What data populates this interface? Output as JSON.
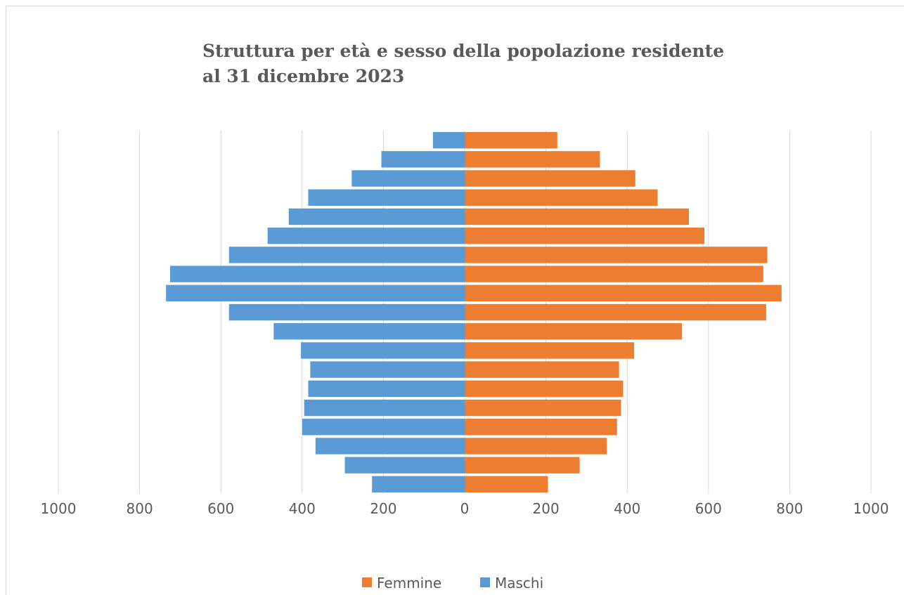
{
  "chart_data": {
    "type": "bar",
    "orientation": "horizontal",
    "title_lines": [
      "Struttura per età e sesso della popolazione residente",
      "al 31 dicembre 2023"
    ],
    "categories": [
      "",
      "",
      "",
      "",
      "",
      "",
      "",
      "",
      "",
      "",
      "",
      "",
      "",
      "",
      "",
      "",
      "",
      "",
      ""
    ],
    "series": [
      {
        "name": "Femmine",
        "color": "#ed7d31",
        "values": [
          205,
          283,
          350,
          375,
          385,
          390,
          380,
          417,
          535,
          742,
          780,
          735,
          745,
          590,
          552,
          475,
          420,
          333,
          228
        ]
      },
      {
        "name": "Maschi",
        "color": "#5b9bd5",
        "values": [
          228,
          295,
          367,
          400,
          395,
          385,
          380,
          403,
          470,
          580,
          735,
          725,
          580,
          485,
          433,
          385,
          278,
          205,
          78
        ]
      }
    ],
    "xlim": [
      -1000,
      1000
    ],
    "x_ticks": [
      {
        "value": -1000,
        "label": "1000"
      },
      {
        "value": -800,
        "label": "800"
      },
      {
        "value": -600,
        "label": "600"
      },
      {
        "value": -400,
        "label": "400"
      },
      {
        "value": -200,
        "label": "200"
      },
      {
        "value": 0,
        "label": "0"
      },
      {
        "value": 200,
        "label": "200"
      },
      {
        "value": 400,
        "label": "400"
      },
      {
        "value": 600,
        "label": "600"
      },
      {
        "value": 800,
        "label": "800"
      },
      {
        "value": 1000,
        "label": "1000"
      }
    ],
    "grid": "vertical",
    "legend_position": "bottom"
  }
}
